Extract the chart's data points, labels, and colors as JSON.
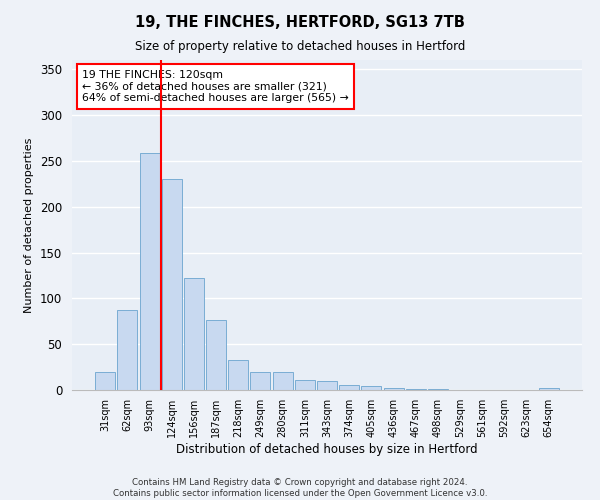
{
  "title1": "19, THE FINCHES, HERTFORD, SG13 7TB",
  "title2": "Size of property relative to detached houses in Hertford",
  "xlabel": "Distribution of detached houses by size in Hertford",
  "ylabel": "Number of detached properties",
  "bar_labels": [
    "31sqm",
    "62sqm",
    "93sqm",
    "124sqm",
    "156sqm",
    "187sqm",
    "218sqm",
    "249sqm",
    "280sqm",
    "311sqm",
    "343sqm",
    "374sqm",
    "405sqm",
    "436sqm",
    "467sqm",
    "498sqm",
    "529sqm",
    "561sqm",
    "592sqm",
    "623sqm",
    "654sqm"
  ],
  "bar_values": [
    20,
    87,
    258,
    230,
    122,
    76,
    33,
    20,
    20,
    11,
    10,
    5,
    4,
    2,
    1,
    1,
    0,
    0,
    0,
    0,
    2
  ],
  "bar_color": "#c8d9f0",
  "bar_edge_color": "#7aadd4",
  "vline_color": "red",
  "ylim": [
    0,
    360
  ],
  "annotation_title": "19 THE FINCHES: 120sqm",
  "annotation_line1": "← 36% of detached houses are smaller (321)",
  "annotation_line2": "64% of semi-detached houses are larger (565) →",
  "annotation_box_color": "white",
  "annotation_box_edge": "red",
  "footnote1": "Contains HM Land Registry data © Crown copyright and database right 2024.",
  "footnote2": "Contains public sector information licensed under the Open Government Licence v3.0.",
  "background_color": "#eef2f8",
  "plot_background": "#e8eef6",
  "grid_color": "white"
}
